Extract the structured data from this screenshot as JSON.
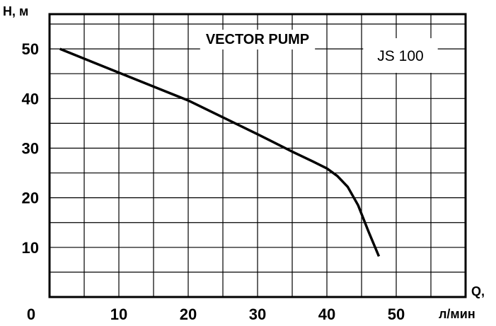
{
  "chart_data": {
    "type": "line",
    "title": "VECTOR PUMP",
    "model_label": "JS 100",
    "ylabel": "H, м",
    "xlabel_top": "Q,",
    "xlabel_unit": "л/мин",
    "x_origin_label": "0",
    "xlim": [
      0,
      60
    ],
    "ylim": [
      0,
      57
    ],
    "x_ticks": [
      10,
      20,
      30,
      40,
      50
    ],
    "y_ticks": [
      10,
      20,
      30,
      40,
      50
    ],
    "grid": true,
    "x_grid_step": 5,
    "y_grid_step": 5,
    "series": [
      {
        "color": "#000000",
        "points": [
          {
            "x": 1.5,
            "y": 50
          },
          {
            "x": 10,
            "y": 45.2
          },
          {
            "x": 20,
            "y": 39.6
          },
          {
            "x": 30,
            "y": 32.8
          },
          {
            "x": 35,
            "y": 29.3
          },
          {
            "x": 38,
            "y": 27.3
          },
          {
            "x": 40,
            "y": 25.9
          },
          {
            "x": 41.5,
            "y": 24.4
          },
          {
            "x": 43,
            "y": 22.2
          },
          {
            "x": 44.5,
            "y": 18.5
          },
          {
            "x": 46,
            "y": 13.2
          },
          {
            "x": 47.5,
            "y": 8.2
          }
        ]
      }
    ]
  }
}
